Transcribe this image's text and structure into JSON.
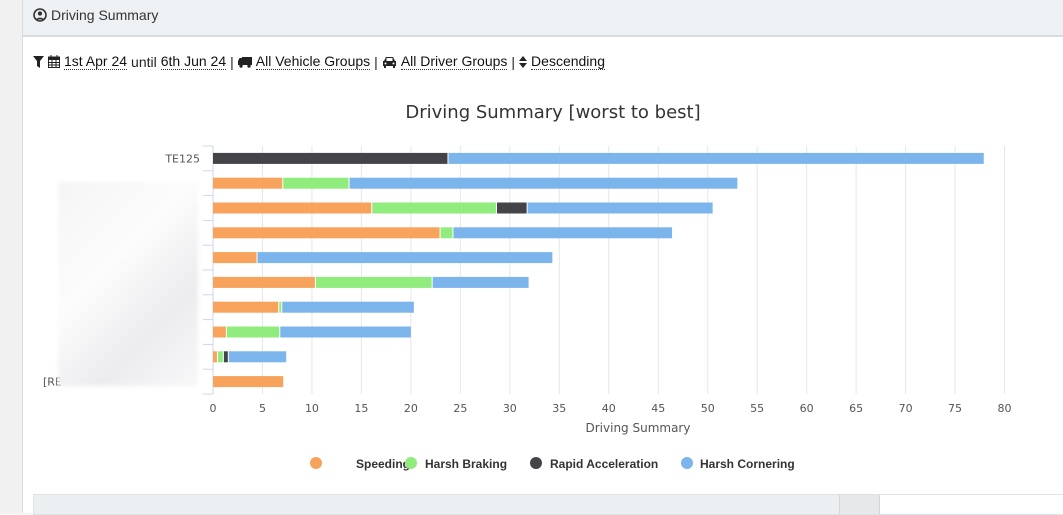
{
  "header": {
    "title": "Driving Summary",
    "icon": "user-circle-icon"
  },
  "filters": {
    "date_from": "1st Apr 24",
    "until": "until",
    "date_to": "6th Jun 24",
    "vehicle_groups": "All Vehicle Groups",
    "driver_groups": "All Driver Groups",
    "sort": "Descending",
    "sep": "|"
  },
  "chart_data": {
    "type": "bar",
    "orientation": "horizontal",
    "stacked": true,
    "title": "Driving Summary [worst to best]",
    "xlabel": "Driving Summary",
    "ylabel": "",
    "xlim": [
      0,
      85
    ],
    "xticks": [
      "0",
      "5",
      "10",
      "15",
      "20",
      "25",
      "30",
      "35",
      "40",
      "45",
      "50",
      "55",
      "60",
      "65",
      "70",
      "75",
      "80",
      "85"
    ],
    "categories": [
      "TE125",
      "",
      "",
      "",
      "",
      "",
      "",
      "",
      "",
      "[RE"
    ],
    "legend_position": "bottom",
    "grid": true,
    "series": [
      {
        "name": "Speeding",
        "color": "#f7a35c",
        "values": [
          0,
          7.1,
          16.1,
          23.0,
          4.5,
          10.4,
          6.7,
          1.4,
          0.5,
          7.2
        ]
      },
      {
        "name": "Harsh Braking",
        "color": "#90ed7d",
        "values": [
          0,
          6.7,
          12.6,
          1.3,
          0,
          11.8,
          0.3,
          5.4,
          0.6,
          0
        ]
      },
      {
        "name": "Rapid Acceleration",
        "color": "#434348",
        "values": [
          23.8,
          0,
          3.1,
          0,
          0,
          0,
          0,
          0,
          0.5,
          0
        ]
      },
      {
        "name": "Harsh Cornering",
        "color": "#7cb5ec",
        "values": [
          54.2,
          39.3,
          18.8,
          22.2,
          29.9,
          9.8,
          13.4,
          13.3,
          5.9,
          0
        ]
      }
    ]
  }
}
